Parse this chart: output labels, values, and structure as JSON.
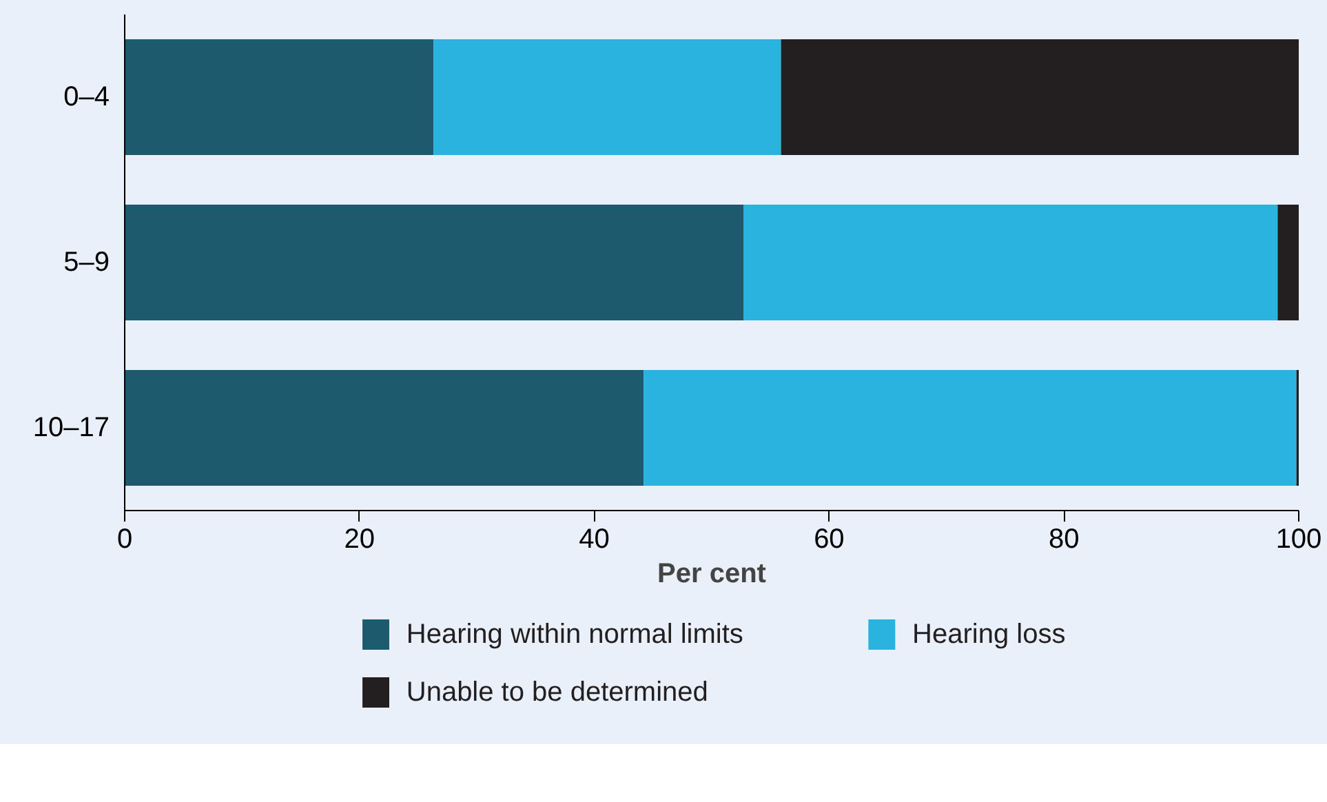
{
  "chart_data": {
    "type": "bar",
    "orientation": "horizontal",
    "stacked": true,
    "xlabel": "Per cent",
    "categories": [
      "0–4",
      "5–9",
      "10–17"
    ],
    "series": [
      {
        "name": "Hearing within normal limits",
        "color": "#1e5a6e",
        "values": [
          26.3,
          52.7,
          44.2
        ]
      },
      {
        "name": "Hearing loss",
        "color": "#29b3de",
        "values": [
          29.6,
          45.5,
          55.6
        ]
      },
      {
        "name": "Unable to be determined",
        "color": "#231f20",
        "values": [
          44.1,
          1.8,
          0.2
        ]
      }
    ],
    "xlim": [
      0,
      100
    ],
    "xticks": [
      0,
      20,
      40,
      60,
      80,
      100
    ],
    "grid": false,
    "legend": "bottom"
  }
}
